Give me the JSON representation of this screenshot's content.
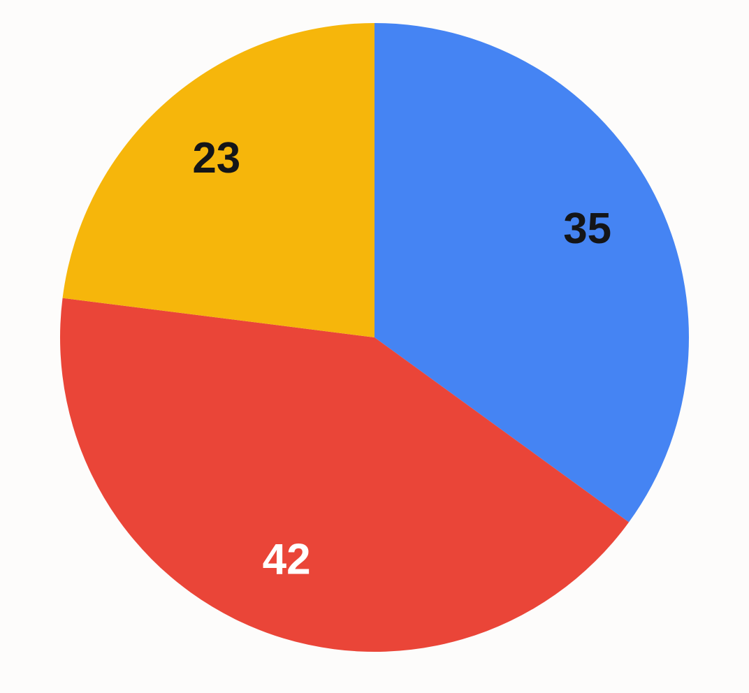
{
  "page": {
    "background": "#FDFCFB"
  },
  "chart_data": {
    "type": "pie",
    "title": "",
    "legend": "none",
    "start_angle_deg": 0,
    "direction": "clockwise",
    "total": 100,
    "slices": [
      {
        "label": "35",
        "value": 35,
        "color": "#4584F3",
        "label_color": "#141518"
      },
      {
        "label": "42",
        "value": 42,
        "color": "#EA4538",
        "label_color": "#FFFFFF"
      },
      {
        "label": "23",
        "value": 23,
        "color": "#F6B60B",
        "label_color": "#141518"
      }
    ]
  }
}
